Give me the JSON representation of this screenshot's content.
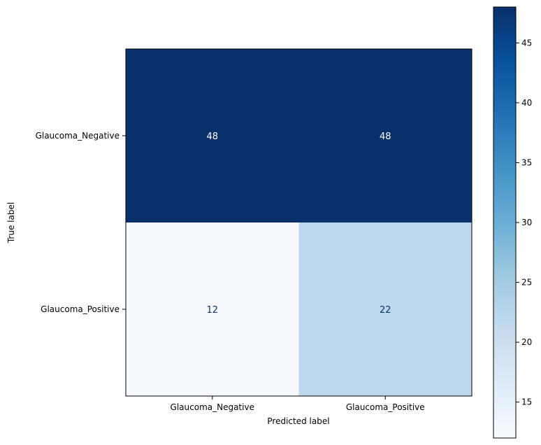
{
  "chart_data": {
    "type": "heatmap",
    "title": "",
    "xlabel": "Predicted label",
    "ylabel": "True label",
    "x_categories": [
      "Glaucoma_Negative",
      "Glaucoma_Positive"
    ],
    "y_categories": [
      "Glaucoma_Negative",
      "Glaucoma_Positive"
    ],
    "values": [
      [
        48,
        48
      ],
      [
        12,
        22
      ]
    ],
    "colormap": "Blues",
    "color_min": 12,
    "color_max": 48,
    "colorbar_ticks": [
      "15",
      "20",
      "25",
      "30",
      "35",
      "40",
      "45"
    ],
    "grid": false,
    "text_color_dark": "#000000",
    "text_color_light_on_dark": "#ffffff",
    "label_color_light_cells": "#08306b"
  }
}
